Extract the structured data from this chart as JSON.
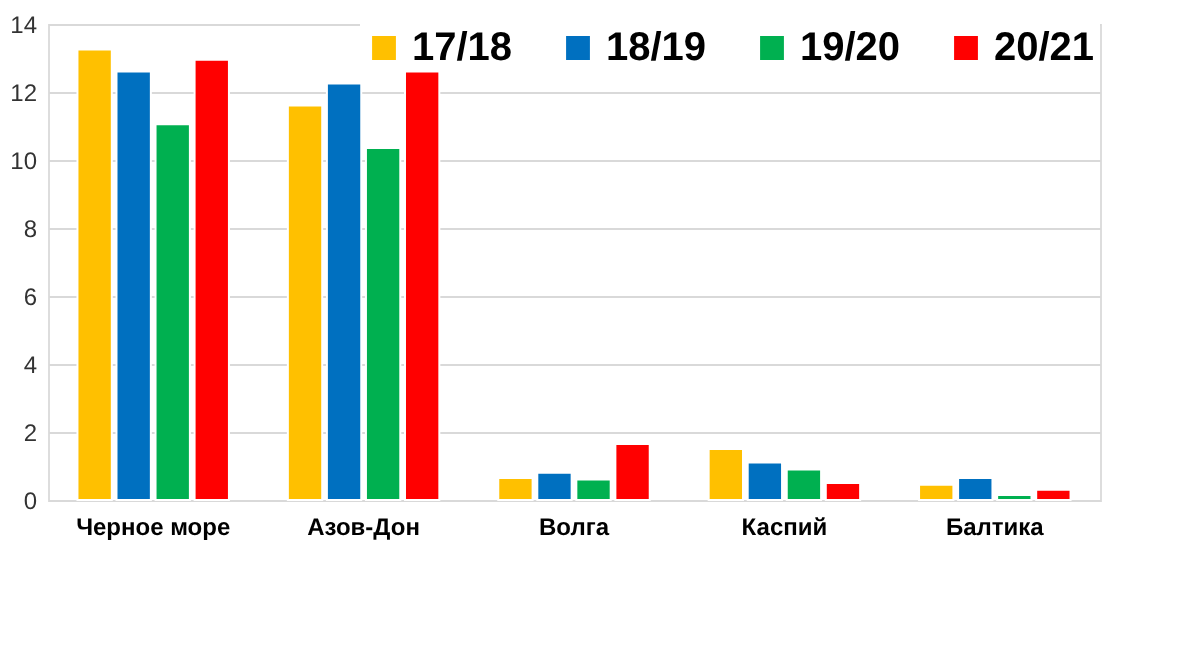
{
  "chart_data": {
    "type": "bar",
    "categories": [
      "Черное море",
      "Азов-Дон",
      "Волга",
      "Каспий",
      "Балтика"
    ],
    "series": [
      {
        "name": "17/18",
        "color": "#ffc000",
        "values": [
          13.25,
          11.6,
          0.65,
          1.5,
          0.45
        ]
      },
      {
        "name": "18/19",
        "color": "#0070c0",
        "values": [
          12.6,
          12.25,
          0.8,
          1.1,
          0.65
        ]
      },
      {
        "name": "19/20",
        "color": "#00b050",
        "values": [
          11.05,
          10.35,
          0.6,
          0.9,
          0.15
        ]
      },
      {
        "name": "20/21",
        "color": "#ff0000",
        "values": [
          12.95,
          12.6,
          1.65,
          0.5,
          0.3
        ]
      }
    ],
    "ylim": [
      0,
      14
    ],
    "yticks": [
      0,
      2,
      4,
      6,
      8,
      10,
      12,
      14
    ],
    "grid": "y",
    "legend": "top right"
  }
}
